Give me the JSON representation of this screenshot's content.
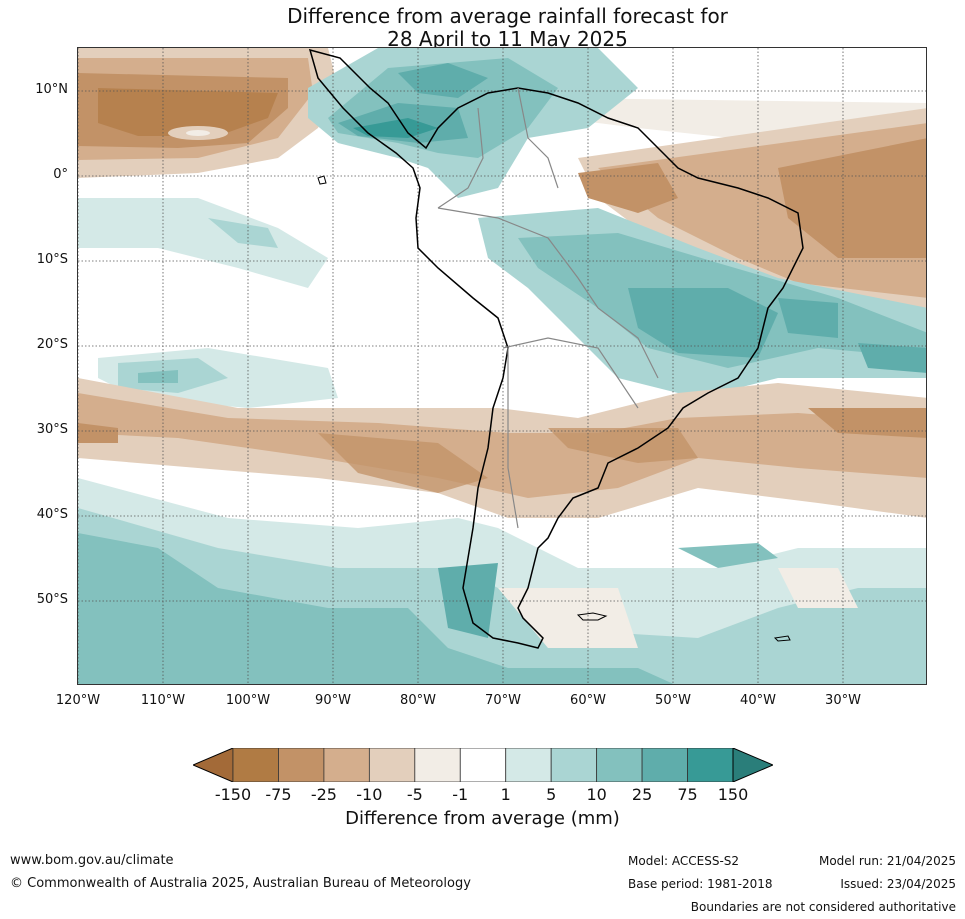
{
  "title": {
    "line1": "Difference from average rainfall forecast for",
    "line2": "28 April to 11 May 2025"
  },
  "map": {
    "lat_labels": [
      "10°N",
      "0°",
      "10°S",
      "20°S",
      "30°S",
      "40°S",
      "50°S"
    ],
    "lon_labels": [
      "120°W",
      "110°W",
      "100°W",
      "90°W",
      "80°W",
      "70°W",
      "60°W",
      "50°W",
      "40°W",
      "30°W"
    ]
  },
  "colorbar": {
    "title": "Difference from average (mm)",
    "ticks": [
      "-150",
      "-75",
      "-25",
      "-10",
      "-5",
      "-1",
      "1",
      "5",
      "10",
      "25",
      "75",
      "150"
    ],
    "colors": [
      "#a36a38",
      "#b07b44",
      "#c29267",
      "#d4ae8d",
      "#e3cfbc",
      "#f2ede6",
      "#ffffff",
      "#d4e9e7",
      "#aad5d3",
      "#83c1be",
      "#5fadab",
      "#379a96",
      "#2a7e7a"
    ]
  },
  "footer": {
    "website": "www.bom.gov.au/climate",
    "copyright": "© Commonwealth of Australia 2025, Australian Bureau of Meteorology",
    "model": "Model: ACCESS-S2",
    "base_period": "Base period: 1981-2018",
    "model_run": "Model run: 21/04/2025",
    "issued": "Issued: 23/04/2025",
    "boundaries": "Boundaries are not considered authoritative"
  }
}
